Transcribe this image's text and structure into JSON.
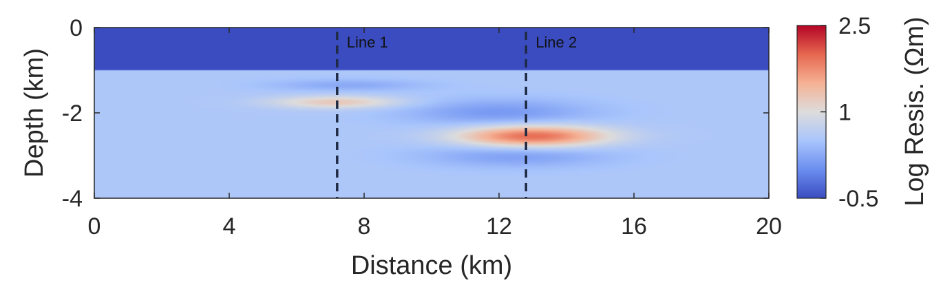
{
  "chart_data": {
    "type": "heatmap",
    "title": "",
    "xlabel": "Distance (km)",
    "ylabel": "Depth (km)",
    "xlim": [
      0,
      20
    ],
    "ylim": [
      -4,
      0
    ],
    "xticks": [
      0,
      4,
      8,
      12,
      16,
      20
    ],
    "xtick_labels": [
      "0",
      "4",
      "8",
      "12",
      "16",
      "20"
    ],
    "yticks": [
      0,
      -2,
      -4
    ],
    "ytick_labels": [
      "0",
      "-2",
      "-4"
    ],
    "colorbar": {
      "label": "Log Resis. (Ωm)",
      "range": [
        -0.5,
        2.5
      ],
      "ticks": [
        2.5,
        1,
        -0.5
      ],
      "tick_labels": [
        "2.5",
        "1",
        "-0.5"
      ],
      "colormap": [
        "#3a4cc0",
        "#6c8ef0",
        "#a9c5fc",
        "#dddcdc",
        "#f5b194",
        "#e6674f",
        "#b40426"
      ]
    },
    "background_log_resistivity": 0.55,
    "layers": [
      {
        "name": "top layer",
        "depth_top_km": 0,
        "depth_bottom_km": -1,
        "log_resistivity": -0.5
      }
    ],
    "anomalies": [
      {
        "center_x_km": 7.2,
        "center_depth_km": -1.75,
        "half_width_km": 2.1,
        "half_thickness_km": 0.16,
        "peak_log_resistivity": 1.25
      },
      {
        "center_x_km": 13.0,
        "center_depth_km": -2.55,
        "half_width_km": 2.4,
        "half_thickness_km": 0.28,
        "peak_log_resistivity": 2.0
      },
      {
        "center_x_km": 12.0,
        "center_depth_km": -2.0,
        "half_width_km": 3.0,
        "half_thickness_km": 0.35,
        "peak_log_resistivity": 0.1
      },
      {
        "center_x_km": 12.5,
        "center_depth_km": -3.0,
        "half_width_km": 3.0,
        "half_thickness_km": 0.3,
        "peak_log_resistivity": 0.15
      },
      {
        "center_x_km": 7.5,
        "center_depth_km": -1.35,
        "half_width_km": 2.5,
        "half_thickness_km": 0.15,
        "peak_log_resistivity": 0.25
      }
    ],
    "profile_lines": [
      {
        "label": "Line 1",
        "x_km": 7.2
      },
      {
        "label": "Line 2",
        "x_km": 12.8
      }
    ]
  }
}
